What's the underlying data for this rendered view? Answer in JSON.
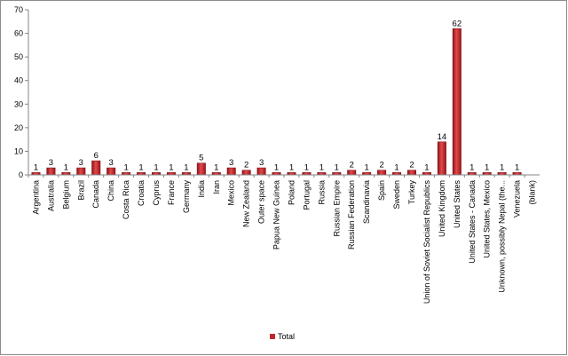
{
  "chart_data": {
    "type": "bar",
    "title": "",
    "xlabel": "",
    "ylabel": "",
    "ylim": [
      0,
      70
    ],
    "yticks": [
      0,
      10,
      20,
      30,
      40,
      50,
      60,
      70
    ],
    "grid": false,
    "legend_position": "bottom",
    "categories": [
      "Argentina",
      "Australia",
      "Belgium",
      "Brazil",
      "Canada",
      "China",
      "Costa Rica",
      "Croatia",
      "Cyprus",
      "France",
      "Germany",
      "India",
      "Iran",
      "Mexico",
      "New Zealand",
      "Outer space",
      "Papua New Guinea",
      "Poland",
      "Portugal",
      "Russia",
      "Russian Empire",
      "Russian Federation",
      "Scandinavia",
      "Spain",
      "Sweden",
      "Turkey",
      "Union of Soviet Socialist Republics",
      "United Kingdom",
      "United States",
      "United States - Canada",
      "United States, Mexico",
      "Unknown, possibly Nepal (the...",
      "Venezuela",
      "(blank)"
    ],
    "series": [
      {
        "name": "Total",
        "color": "#c0282d",
        "values": [
          1,
          3,
          1,
          3,
          6,
          3,
          1,
          1,
          1,
          1,
          1,
          5,
          1,
          3,
          2,
          3,
          1,
          1,
          1,
          1,
          1,
          2,
          1,
          2,
          1,
          2,
          1,
          14,
          62,
          1,
          1,
          1,
          1,
          null
        ]
      }
    ]
  }
}
